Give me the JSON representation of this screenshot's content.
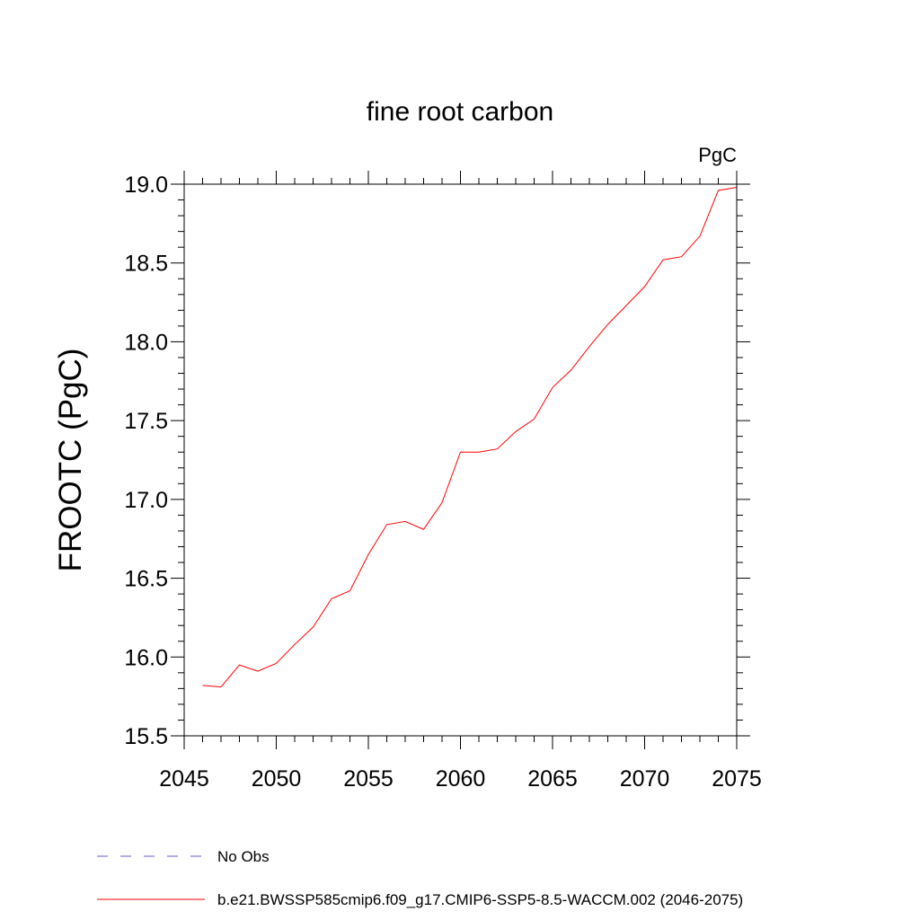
{
  "chart_data": {
    "type": "line",
    "title": "fine root carbon",
    "units_label": "PgC",
    "xlabel": "",
    "ylabel": "FROOTC  (PgC)",
    "xlim": [
      2045,
      2075
    ],
    "ylim": [
      15.5,
      19.0
    ],
    "x_ticks": [
      "2045",
      "2050",
      "2055",
      "2060",
      "2065",
      "2070",
      "2075"
    ],
    "y_ticks": [
      "15.5",
      "16.0",
      "16.5",
      "17.0",
      "17.5",
      "18.0",
      "18.5",
      "19.0"
    ],
    "grid": false,
    "series": [
      {
        "name": "b.e21.BWSSP585cmip6.f09_g17.CMIP6-SSP5-8.5-WACCM.002 (2046-2075)",
        "color": "#ff0000",
        "style": "solid",
        "x": [
          2046,
          2047,
          2048,
          2049,
          2050,
          2051,
          2052,
          2053,
          2054,
          2055,
          2056,
          2057,
          2058,
          2059,
          2060,
          2061,
          2062,
          2063,
          2064,
          2065,
          2066,
          2067,
          2068,
          2069,
          2070,
          2071,
          2072,
          2073,
          2074,
          2075
        ],
        "y": [
          15.82,
          15.81,
          15.95,
          15.91,
          15.96,
          16.08,
          16.19,
          16.37,
          16.42,
          16.65,
          16.84,
          16.86,
          16.81,
          16.98,
          17.3,
          17.3,
          17.32,
          17.43,
          17.51,
          17.71,
          17.82,
          17.97,
          18.11,
          18.23,
          18.35,
          18.52,
          18.54,
          18.67,
          18.96,
          18.98
        ]
      }
    ],
    "legend": {
      "placement": "bottom",
      "entries": [
        {
          "label": "No Obs",
          "color": "#6a5acd",
          "style": "dashed"
        },
        {
          "label": "b.e21.BWSSP585cmip6.f09_g17.CMIP6-SSP5-8.5-WACCM.002 (2046-2075)",
          "color": "#ff0000",
          "style": "solid"
        }
      ]
    }
  }
}
